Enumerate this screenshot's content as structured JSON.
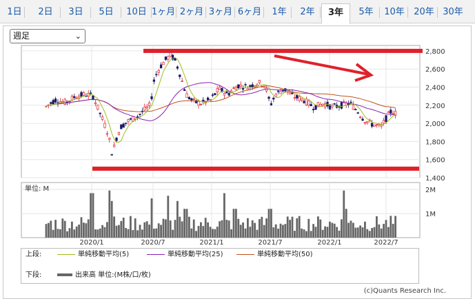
{
  "tabs": [
    {
      "label": "1日"
    },
    {
      "label": "2日"
    },
    {
      "label": "3日"
    },
    {
      "label": "5日"
    },
    {
      "label": "10日"
    },
    {
      "label": "1ヶ月"
    },
    {
      "label": "2ヶ月"
    },
    {
      "label": "3ヶ月"
    },
    {
      "label": "6ヶ月"
    },
    {
      "label": "1年"
    },
    {
      "label": "2年"
    },
    {
      "label": "3年"
    },
    {
      "label": "5年"
    },
    {
      "label": "10年"
    },
    {
      "label": "20年"
    },
    {
      "label": "30年"
    }
  ],
  "active_tab": "3年",
  "period_select": {
    "value": "週足",
    "icon": "chevron-down-icon"
  },
  "chart_data": [
    {
      "type": "candlestick",
      "y_ticks": [
        "2,800",
        "2,600",
        "2,400",
        "2,200",
        "2,000",
        "1,800",
        "1,600",
        "1,400"
      ],
      "ylim": [
        1400,
        2860
      ],
      "x_ticks": [
        "2020/1",
        "2020/7",
        "2021/1",
        "2021/7",
        "2022/1",
        "2022/7"
      ],
      "series": [
        {
          "name": "単純移動平均(5)",
          "color": "#9bbf1a"
        },
        {
          "name": "単純移動平均(25)",
          "color": "#8a1fb4"
        },
        {
          "name": "単純移動平均(50)",
          "color": "#c0501a"
        }
      ],
      "annotations": [
        {
          "type": "horizontal-line",
          "y": 2800,
          "color": "#e0202a"
        },
        {
          "type": "horizontal-line",
          "y": 1500,
          "color": "#e0202a"
        },
        {
          "type": "arrow",
          "from": {
            "date": "2021/7",
            "y": 2740
          },
          "to": {
            "date": "2022/4",
            "y": 2550
          },
          "color": "#e0202a"
        }
      ],
      "candle_colors": {
        "up": "#e0202a",
        "down": "#1a1a6a"
      }
    },
    {
      "type": "bar",
      "unit_label": "単位: M",
      "y_ticks": [
        "2M",
        "1M"
      ],
      "color": "#666666"
    }
  ],
  "legend": {
    "upper_label": "上段:",
    "lower_label": "下段:",
    "ma5": "単純移動平均(5)",
    "ma25": "単純移動平均(25)",
    "ma50": "単純移動平均(50)",
    "volume": "出来高 単位:(M株/口/枚)"
  },
  "credit": "(c)Quants Research Inc."
}
